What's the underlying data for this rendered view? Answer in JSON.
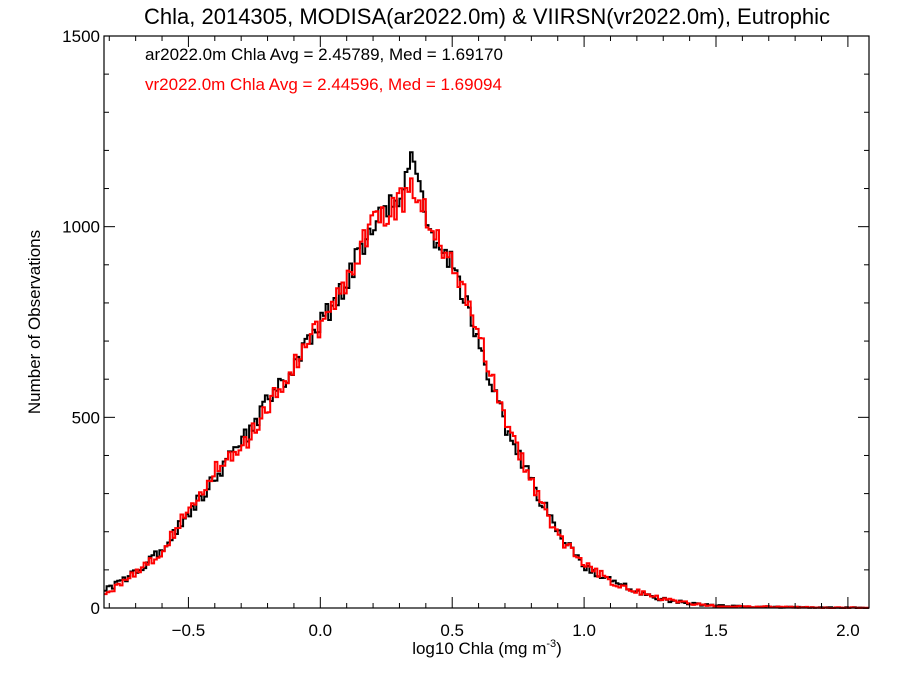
{
  "chart_data": {
    "type": "line",
    "step": true,
    "title": "Chla, 2014305, MODISA(ar2022.0m) & VIIRSN(vr2022.0m), Eutrophic",
    "xlabel_main": "log10 Chla (mg m",
    "xlabel_sup": "-3",
    "xlabel_close": ")",
    "ylabel": "Number of Observations",
    "xlim": [
      -0.82,
      2.08
    ],
    "ylim": [
      0,
      1500
    ],
    "x_ticks": [
      -0.5,
      0.0,
      0.5,
      1.0,
      1.5,
      2.0
    ],
    "x_tick_labels": [
      "−0.5",
      "0.0",
      "0.5",
      "1.0",
      "1.5",
      "2.0"
    ],
    "y_ticks": [
      0,
      500,
      1000,
      1500
    ],
    "y_tick_labels": [
      "0",
      "500",
      "1000",
      "1500"
    ],
    "grid": false,
    "legend_position": "top-left",
    "series": [
      {
        "name": "ar2022.0m",
        "legend_text": "ar2022.0m Chla Avg = 2.45789, Med = 1.69170",
        "color": "#000000",
        "x": [
          -0.8,
          -0.7,
          -0.6,
          -0.5,
          -0.4,
          -0.3,
          -0.2,
          -0.1,
          0.0,
          0.1,
          0.2,
          0.3,
          0.35,
          0.4,
          0.45,
          0.5,
          0.6,
          0.7,
          0.8,
          0.9,
          1.0,
          1.1,
          1.2,
          1.3,
          1.4,
          1.5,
          1.6,
          1.7,
          1.8,
          1.9,
          2.0,
          2.08
        ],
        "y": [
          50,
          95,
          150,
          250,
          340,
          430,
          540,
          640,
          740,
          860,
          1000,
          1080,
          1200,
          1030,
          940,
          900,
          700,
          480,
          330,
          200,
          110,
          70,
          45,
          22,
          12,
          6,
          4,
          3,
          2,
          1,
          1,
          0
        ]
      },
      {
        "name": "vr2022.0m",
        "legend_text": "vr2022.0m Chla Avg = 2.44596, Med = 1.69094",
        "color": "#ff0000",
        "x": [
          -0.8,
          -0.7,
          -0.6,
          -0.5,
          -0.4,
          -0.3,
          -0.2,
          -0.1,
          0.0,
          0.1,
          0.2,
          0.3,
          0.35,
          0.4,
          0.45,
          0.5,
          0.6,
          0.7,
          0.8,
          0.9,
          1.0,
          1.1,
          1.2,
          1.3,
          1.4,
          1.5,
          1.6,
          1.7,
          1.8,
          1.9,
          2.0,
          2.08
        ],
        "y": [
          40,
          95,
          145,
          260,
          360,
          410,
          530,
          640,
          740,
          860,
          1020,
          1060,
          1110,
          1040,
          960,
          920,
          720,
          500,
          330,
          190,
          120,
          70,
          45,
          24,
          12,
          6,
          4,
          3,
          2,
          1,
          1,
          0
        ]
      }
    ]
  }
}
